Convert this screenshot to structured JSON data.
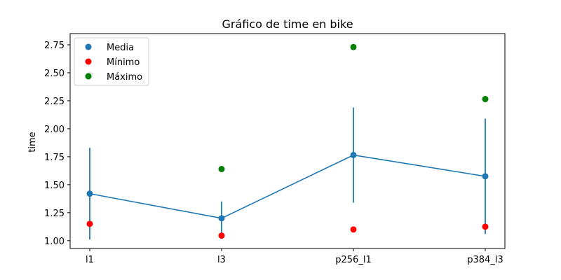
{
  "chart_data": {
    "type": "scatter",
    "title": "Gráfico de time en bike",
    "xlabel": "",
    "ylabel": "time",
    "categories": [
      "l1",
      "l3",
      "p256_l1",
      "p384_l3"
    ],
    "ylim": [
      0.93,
      2.85
    ],
    "yticks": [
      "1.00",
      "1.25",
      "1.50",
      "1.75",
      "2.00",
      "2.25",
      "2.50",
      "2.75"
    ],
    "grid": false,
    "legend_position": "top-left",
    "series": [
      {
        "name": "Media",
        "color": "#1f77b4",
        "values": [
          1.42,
          1.2,
          1.765,
          1.575
        ],
        "line": true,
        "error_low": [
          1.01,
          1.05,
          1.34,
          1.06
        ],
        "error_high": [
          1.83,
          1.35,
          2.19,
          2.09
        ]
      },
      {
        "name": "Mínimo",
        "color": "#ff0000",
        "values": [
          1.15,
          1.045,
          1.1,
          1.125
        ]
      },
      {
        "name": "Máximo",
        "color": "#008000",
        "values": [
          2.48,
          1.64,
          2.73,
          2.265
        ]
      }
    ]
  }
}
